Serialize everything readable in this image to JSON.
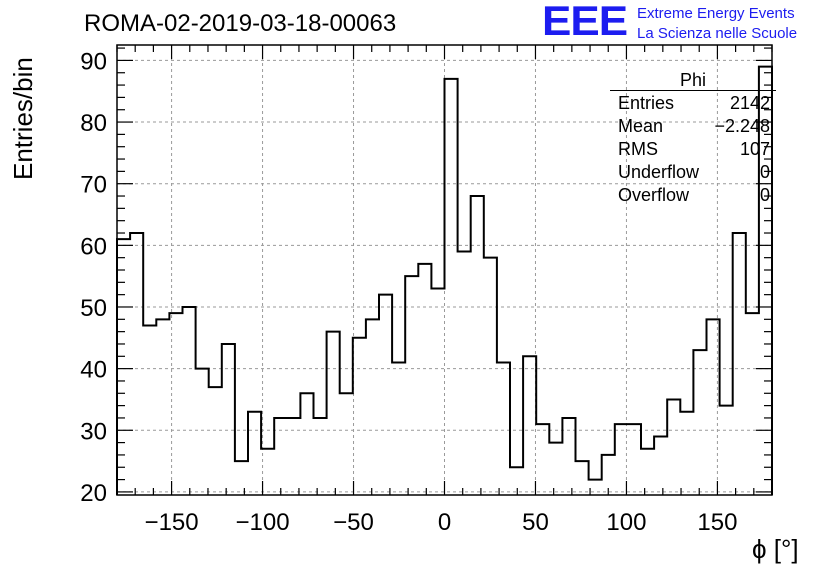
{
  "header": {
    "run_title": "ROMA-02-2019-03-18-00063",
    "logo_letters": "EEE",
    "logo_line1": "Extreme Energy Events",
    "logo_line2": "La Scienza nelle Scuole",
    "brand_color": "#1c1cf0"
  },
  "stats": {
    "title": "Phi",
    "rows": [
      {
        "label": "Entries",
        "value": "2142"
      },
      {
        "label": "Mean",
        "value": "−2.248"
      },
      {
        "label": "RMS",
        "value": "107"
      },
      {
        "label": "Underflow",
        "value": "0"
      },
      {
        "label": "Overflow",
        "value": "0"
      }
    ]
  },
  "chart_data": {
    "type": "histogram",
    "title": "ROMA-02-2019-03-18-00063",
    "xlabel": "ϕ [°]",
    "ylabel": "Entries/bin",
    "xlim": [
      -180,
      180
    ],
    "ylim": [
      19.5,
      92.5
    ],
    "bin_width": 7.2,
    "bin_low_edges": [
      -180,
      -172.8,
      -165.6,
      -158.4,
      -151.2,
      -144,
      -136.8,
      -129.6,
      -122.4,
      -115.2,
      -108,
      -100.8,
      -93.6,
      -86.4,
      -79.2,
      -72,
      -64.8,
      -57.6,
      -50.4,
      -43.2,
      -36,
      -28.8,
      -21.6,
      -14.4,
      -7.2,
      0,
      7.2,
      14.4,
      21.6,
      28.8,
      36,
      43.2,
      50.4,
      57.6,
      64.8,
      72,
      79.2,
      86.4,
      93.6,
      100.8,
      108,
      115.2,
      122.4,
      129.6,
      136.8,
      144,
      151.2,
      158.4,
      165.6,
      172.8
    ],
    "values": [
      61,
      62,
      47,
      48,
      49,
      50,
      40,
      37,
      44,
      25,
      33,
      27,
      32,
      32,
      36,
      32,
      46,
      36,
      45,
      48,
      52,
      41,
      55,
      57,
      53,
      87,
      59,
      68,
      58,
      41,
      24,
      42,
      31,
      28,
      32,
      25,
      22,
      26,
      31,
      31,
      27,
      29,
      35,
      33,
      43,
      48,
      34,
      62,
      49,
      89
    ],
    "x_ticks": [
      -150,
      -100,
      -50,
      0,
      50,
      100,
      150
    ],
    "x_tick_labels": [
      "−150",
      "−100",
      "−50",
      "0",
      "50",
      "100",
      "150"
    ],
    "y_ticks": [
      20,
      30,
      40,
      50,
      60,
      70,
      80,
      90
    ],
    "y_tick_labels": [
      "20",
      "30",
      "40",
      "50",
      "60",
      "70",
      "80",
      "90"
    ],
    "grid": true,
    "legend": "top-right stats box"
  }
}
